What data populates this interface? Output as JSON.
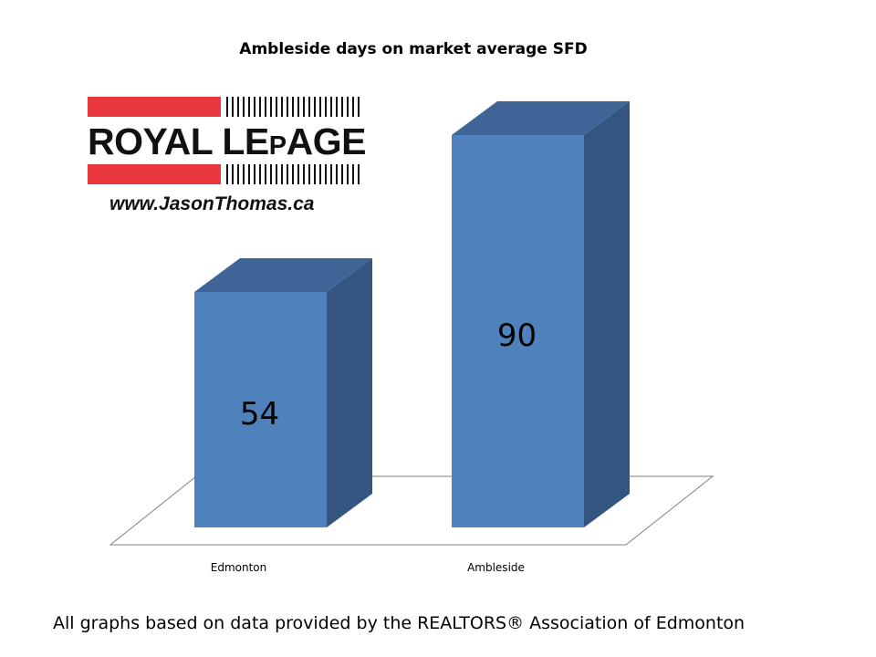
{
  "chart_data": {
    "type": "bar",
    "title": "Ambleside days on market average SFD",
    "categories": [
      "Edmonton",
      "Ambleside"
    ],
    "values": [
      54,
      90
    ],
    "ylim": [
      0,
      100
    ],
    "xlabel": "",
    "ylabel": "",
    "grid": false,
    "style": "3d-column",
    "colors": {
      "front": "#4f81bd",
      "side": "#34557f",
      "top": "#3e6596"
    }
  },
  "logo": {
    "brand_main": "ROYAL LE",
    "brand_small": "P",
    "brand_rest": "AGE",
    "url": "www.JasonThomas.ca"
  },
  "footer": {
    "text": "All graphs based on data provided by the REALTORS® Association of Edmonton"
  }
}
